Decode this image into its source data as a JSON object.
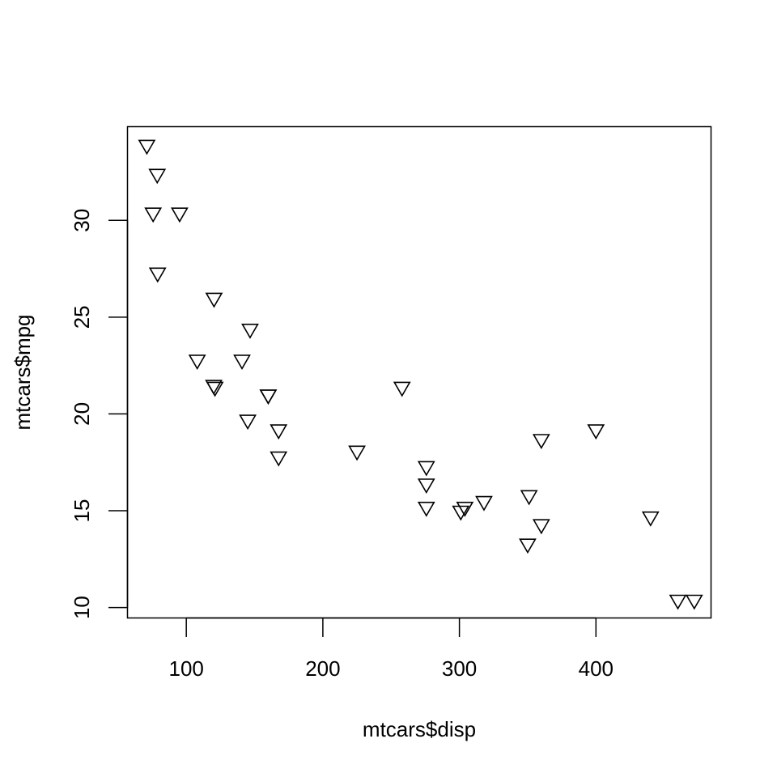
{
  "chart_data": {
    "type": "scatter",
    "title": "",
    "xlabel": "mtcars$disp",
    "ylabel": "mtcars$mpg",
    "xlim": [
      56.92,
      484.28
    ],
    "ylim": [
      9.46,
      34.84
    ],
    "xticks": [
      100,
      200,
      300,
      400
    ],
    "yticks": [
      10,
      15,
      20,
      25,
      30
    ],
    "grid": false,
    "legend": "none",
    "marker": "triangle-down-open",
    "points": [
      {
        "x": 160,
        "y": 21.0
      },
      {
        "x": 160,
        "y": 21.0
      },
      {
        "x": 108,
        "y": 22.8
      },
      {
        "x": 258,
        "y": 21.4
      },
      {
        "x": 360,
        "y": 18.7
      },
      {
        "x": 225,
        "y": 18.1
      },
      {
        "x": 360,
        "y": 14.3
      },
      {
        "x": 146.7,
        "y": 24.4
      },
      {
        "x": 140.8,
        "y": 22.8
      },
      {
        "x": 167.6,
        "y": 19.2
      },
      {
        "x": 167.6,
        "y": 17.8
      },
      {
        "x": 275.8,
        "y": 16.4
      },
      {
        "x": 275.8,
        "y": 17.3
      },
      {
        "x": 275.8,
        "y": 15.2
      },
      {
        "x": 472,
        "y": 10.4
      },
      {
        "x": 460,
        "y": 10.4
      },
      {
        "x": 440,
        "y": 14.7
      },
      {
        "x": 78.7,
        "y": 32.4
      },
      {
        "x": 75.7,
        "y": 30.4
      },
      {
        "x": 71.1,
        "y": 33.9
      },
      {
        "x": 120.1,
        "y": 21.5
      },
      {
        "x": 318,
        "y": 15.5
      },
      {
        "x": 304,
        "y": 15.2
      },
      {
        "x": 350,
        "y": 13.3
      },
      {
        "x": 400,
        "y": 19.2
      },
      {
        "x": 79,
        "y": 27.3
      },
      {
        "x": 120.3,
        "y": 26.0
      },
      {
        "x": 95.1,
        "y": 30.4
      },
      {
        "x": 351,
        "y": 15.8
      },
      {
        "x": 145,
        "y": 19.7
      },
      {
        "x": 301,
        "y": 15.0
      },
      {
        "x": 121,
        "y": 21.4
      }
    ]
  }
}
